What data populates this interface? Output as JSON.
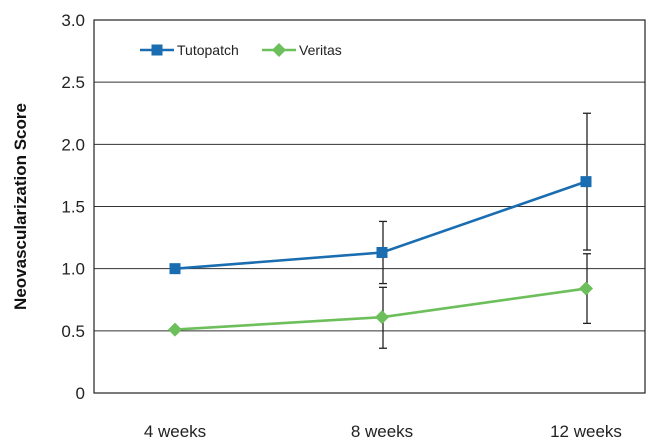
{
  "chart_data": {
    "type": "line",
    "title": "",
    "xlabel": "",
    "ylabel": "Neovascularization Score",
    "categories": [
      "4 weeks",
      "8 weeks",
      "12 weeks"
    ],
    "ylim": [
      0,
      3.0
    ],
    "yticks": [
      "0",
      "0.5",
      "1.0",
      "1.5",
      "2.0",
      "2.5",
      "3.0"
    ],
    "grid": true,
    "legend_position": "top-left",
    "series": [
      {
        "name": "Tutopatch",
        "values": [
          1.0,
          1.13,
          1.7
        ],
        "err_low": [
          null,
          0.88,
          1.15
        ],
        "err_high": [
          null,
          1.38,
          2.25
        ],
        "color": "#1a6db0",
        "marker": "square"
      },
      {
        "name": "Veritas",
        "values": [
          0.51,
          0.61,
          0.84
        ],
        "err_low": [
          null,
          0.36,
          0.56
        ],
        "err_high": [
          null,
          0.85,
          1.12
        ],
        "color": "#6cbf5a",
        "marker": "diamond"
      }
    ]
  }
}
